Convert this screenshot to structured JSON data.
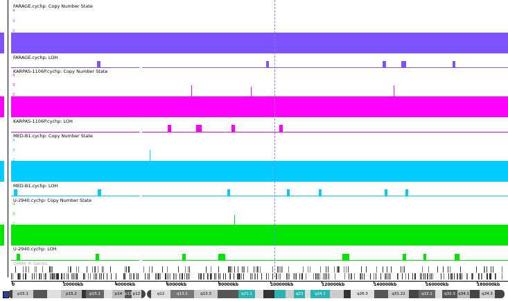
{
  "tracks": [
    {
      "cn_title": "FARAGE.cychp: Copy Number State",
      "loh_title": "FARAGE.cychp: LOH",
      "color": "#7f52ff",
      "gutter_color": "#7f52ff"
    },
    {
      "cn_title": "KARPAS-1106P.cychp: Copy Number State",
      "loh_title": "KARPAS-1106P.cychp: LOH",
      "color": "#ff00ff",
      "gutter_color": "#ff00ff"
    },
    {
      "cn_title": "MED-B1.cychp: Copy Number State",
      "loh_title": "MED-B1.cychp: LOH",
      "color": "#00ccff",
      "gutter_color": "#00ccff"
    },
    {
      "cn_title": "U-2940.cychp: Copy Number State",
      "loh_title": "U-2940.cychp: LOH",
      "color": "#00e600",
      "gutter_color": "#00e600"
    }
  ],
  "y_labels": {
    "top": "4",
    "upper": "3",
    "middle": "2"
  },
  "genes_label": "OMIM ® Genes",
  "axis_ticks": [
    "0",
    "20000kb",
    "40000kb",
    "60000kb",
    "80000kb",
    "100000kb",
    "120000kb",
    "140000kb",
    "160000kb",
    "180000kb"
  ],
  "bands": [
    "p15.1",
    "p15.2",
    "p15.1",
    "p14",
    "p13",
    "p12",
    "q12",
    "q13.1",
    "q13.3",
    "q21.1",
    "q23",
    "q24.1",
    "q26.3",
    "q31.22",
    "q32.1",
    "q32.3",
    "q34.1",
    "q34.3"
  ],
  "colors": {
    "cursor": "#8080ff",
    "ideogram_dark": "#444444",
    "ideogram_light": "#cccccc",
    "centromere": "#2ab3b3"
  }
}
